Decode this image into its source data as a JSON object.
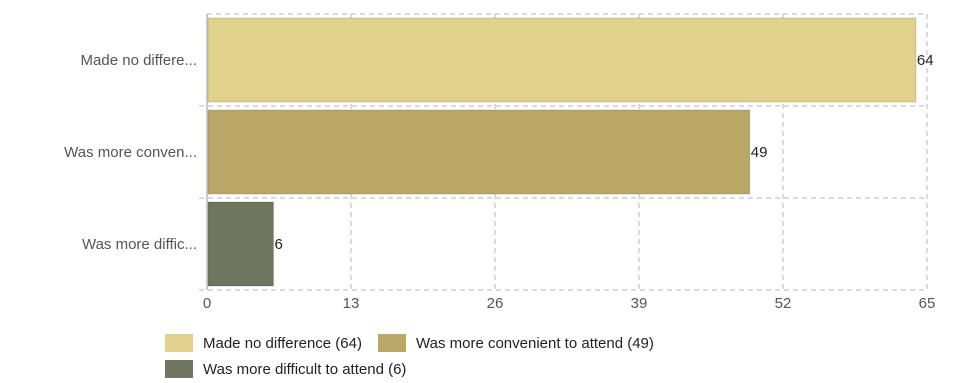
{
  "chart_data": {
    "type": "bar",
    "orientation": "horizontal",
    "categories": [
      "Made no differe...",
      "Was more conven...",
      "Was more diffic..."
    ],
    "values": [
      64,
      49,
      6
    ],
    "data_labels": [
      "64",
      "49",
      "6"
    ],
    "colors": [
      "#e0d28c",
      "#baa666",
      "#6f7660"
    ],
    "xlim": [
      0,
      65
    ],
    "xticks": [
      0,
      13,
      26,
      39,
      52,
      65
    ],
    "xtick_labels": [
      "0",
      "13",
      "26",
      "39",
      "52",
      "65"
    ],
    "grid": true,
    "legend_position": "bottom",
    "legend": [
      {
        "label": "Made no difference (64)",
        "color": "#e0d28c"
      },
      {
        "label": "Was more convenient to attend (49)",
        "color": "#baa666"
      },
      {
        "label": "Was more difficult to attend (6)",
        "color": "#6f7660"
      }
    ]
  }
}
